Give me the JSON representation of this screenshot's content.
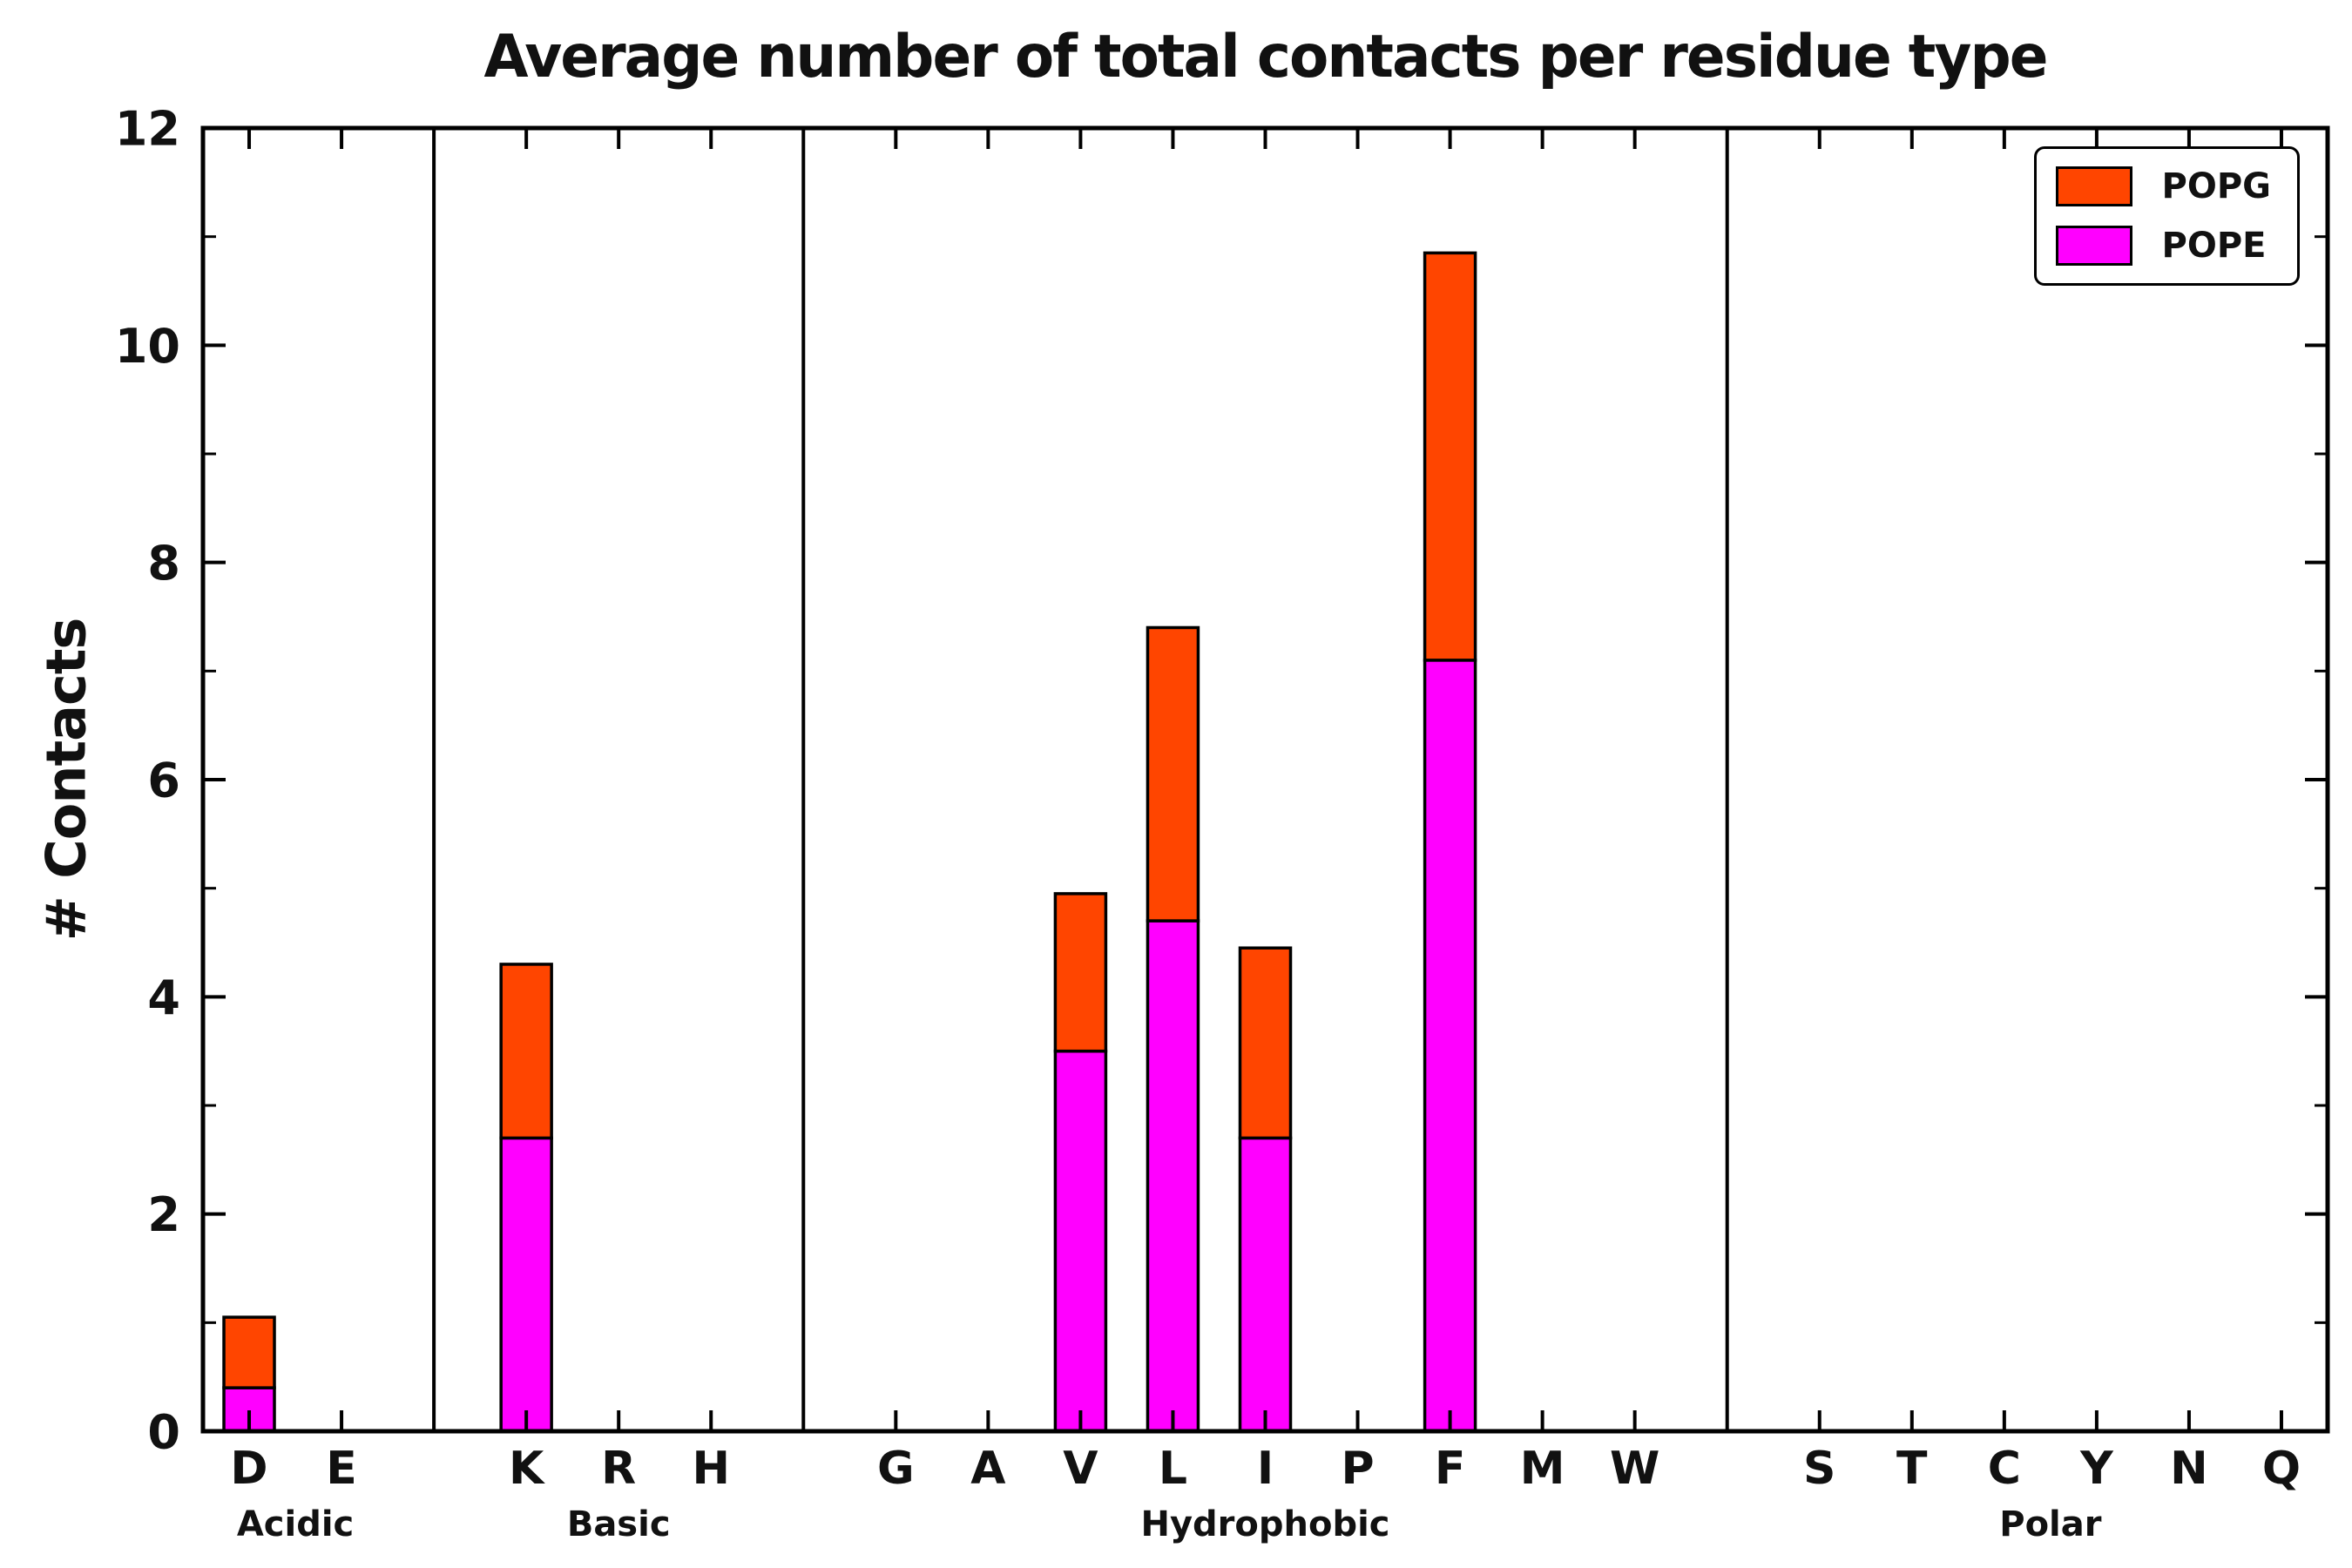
{
  "chart_data": {
    "type": "bar",
    "stacked": true,
    "title": "Average number of total contacts per residue type",
    "ylabel": "# Contacts",
    "xlabel": "",
    "ylim": [
      0,
      12
    ],
    "yticks": [
      0,
      2,
      4,
      6,
      8,
      10,
      12
    ],
    "grid": false,
    "groups": [
      {
        "label": "Acidic",
        "categories": [
          "D",
          "E"
        ]
      },
      {
        "label": "Basic",
        "categories": [
          "K",
          "R",
          "H"
        ]
      },
      {
        "label": "Hydrophobic",
        "categories": [
          "G",
          "A",
          "V",
          "L",
          "I",
          "P",
          "F",
          "M",
          "W"
        ]
      },
      {
        "label": "Polar",
        "categories": [
          "S",
          "T",
          "C",
          "Y",
          "N",
          "Q"
        ]
      }
    ],
    "series": [
      {
        "name": "POPE",
        "color": "#FF00FF",
        "values": {
          "D": 0.4,
          "E": 0,
          "K": 2.7,
          "R": 0,
          "H": 0,
          "G": 0,
          "A": 0,
          "V": 3.5,
          "L": 4.7,
          "I": 2.7,
          "P": 0,
          "F": 7.1,
          "M": 0,
          "W": 0,
          "S": 0,
          "T": 0,
          "C": 0,
          "Y": 0,
          "N": 0,
          "Q": 0
        }
      },
      {
        "name": "POPG",
        "color": "#FF4500",
        "values": {
          "D": 0.65,
          "E": 0,
          "K": 1.6,
          "R": 0,
          "H": 0,
          "G": 0,
          "A": 0,
          "V": 1.45,
          "L": 2.7,
          "I": 1.75,
          "P": 0,
          "F": 3.75,
          "M": 0,
          "W": 0,
          "S": 0,
          "T": 0,
          "C": 0,
          "Y": 0,
          "N": 0,
          "Q": 0
        }
      }
    ],
    "legend": {
      "position": "upper right",
      "entries": [
        "POPG",
        "POPE"
      ]
    }
  }
}
